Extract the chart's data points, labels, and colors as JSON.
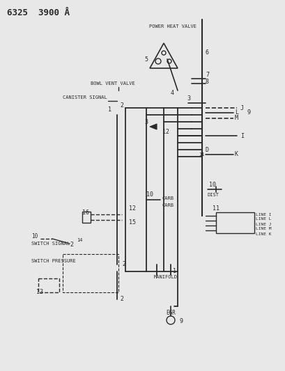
{
  "title": "6325  3900 Å",
  "bg_color": "#e8e8e8",
  "line_color": "#2a2a2a",
  "text_color": "#2a2a2a",
  "labels": {
    "power_heat_valve": "POWER HEAT VALVE",
    "bowl_vent_valve": "BOWL VENT VALVE",
    "canister_signal": "CANISTER SIGNAL",
    "switch_signal": "SWITCH SIGNAL",
    "switch_pressure": "SWITCH PRESSURE",
    "manifold": "MANIFOLD",
    "egr": "EGR",
    "carb1": "CARB",
    "carb2": "CARB",
    "dist": "DIST",
    "line_i": "LINE I",
    "line_l": "LINE L",
    "line_j": "LINE J",
    "line_m": "LINE M",
    "line_k": "LINE K"
  }
}
